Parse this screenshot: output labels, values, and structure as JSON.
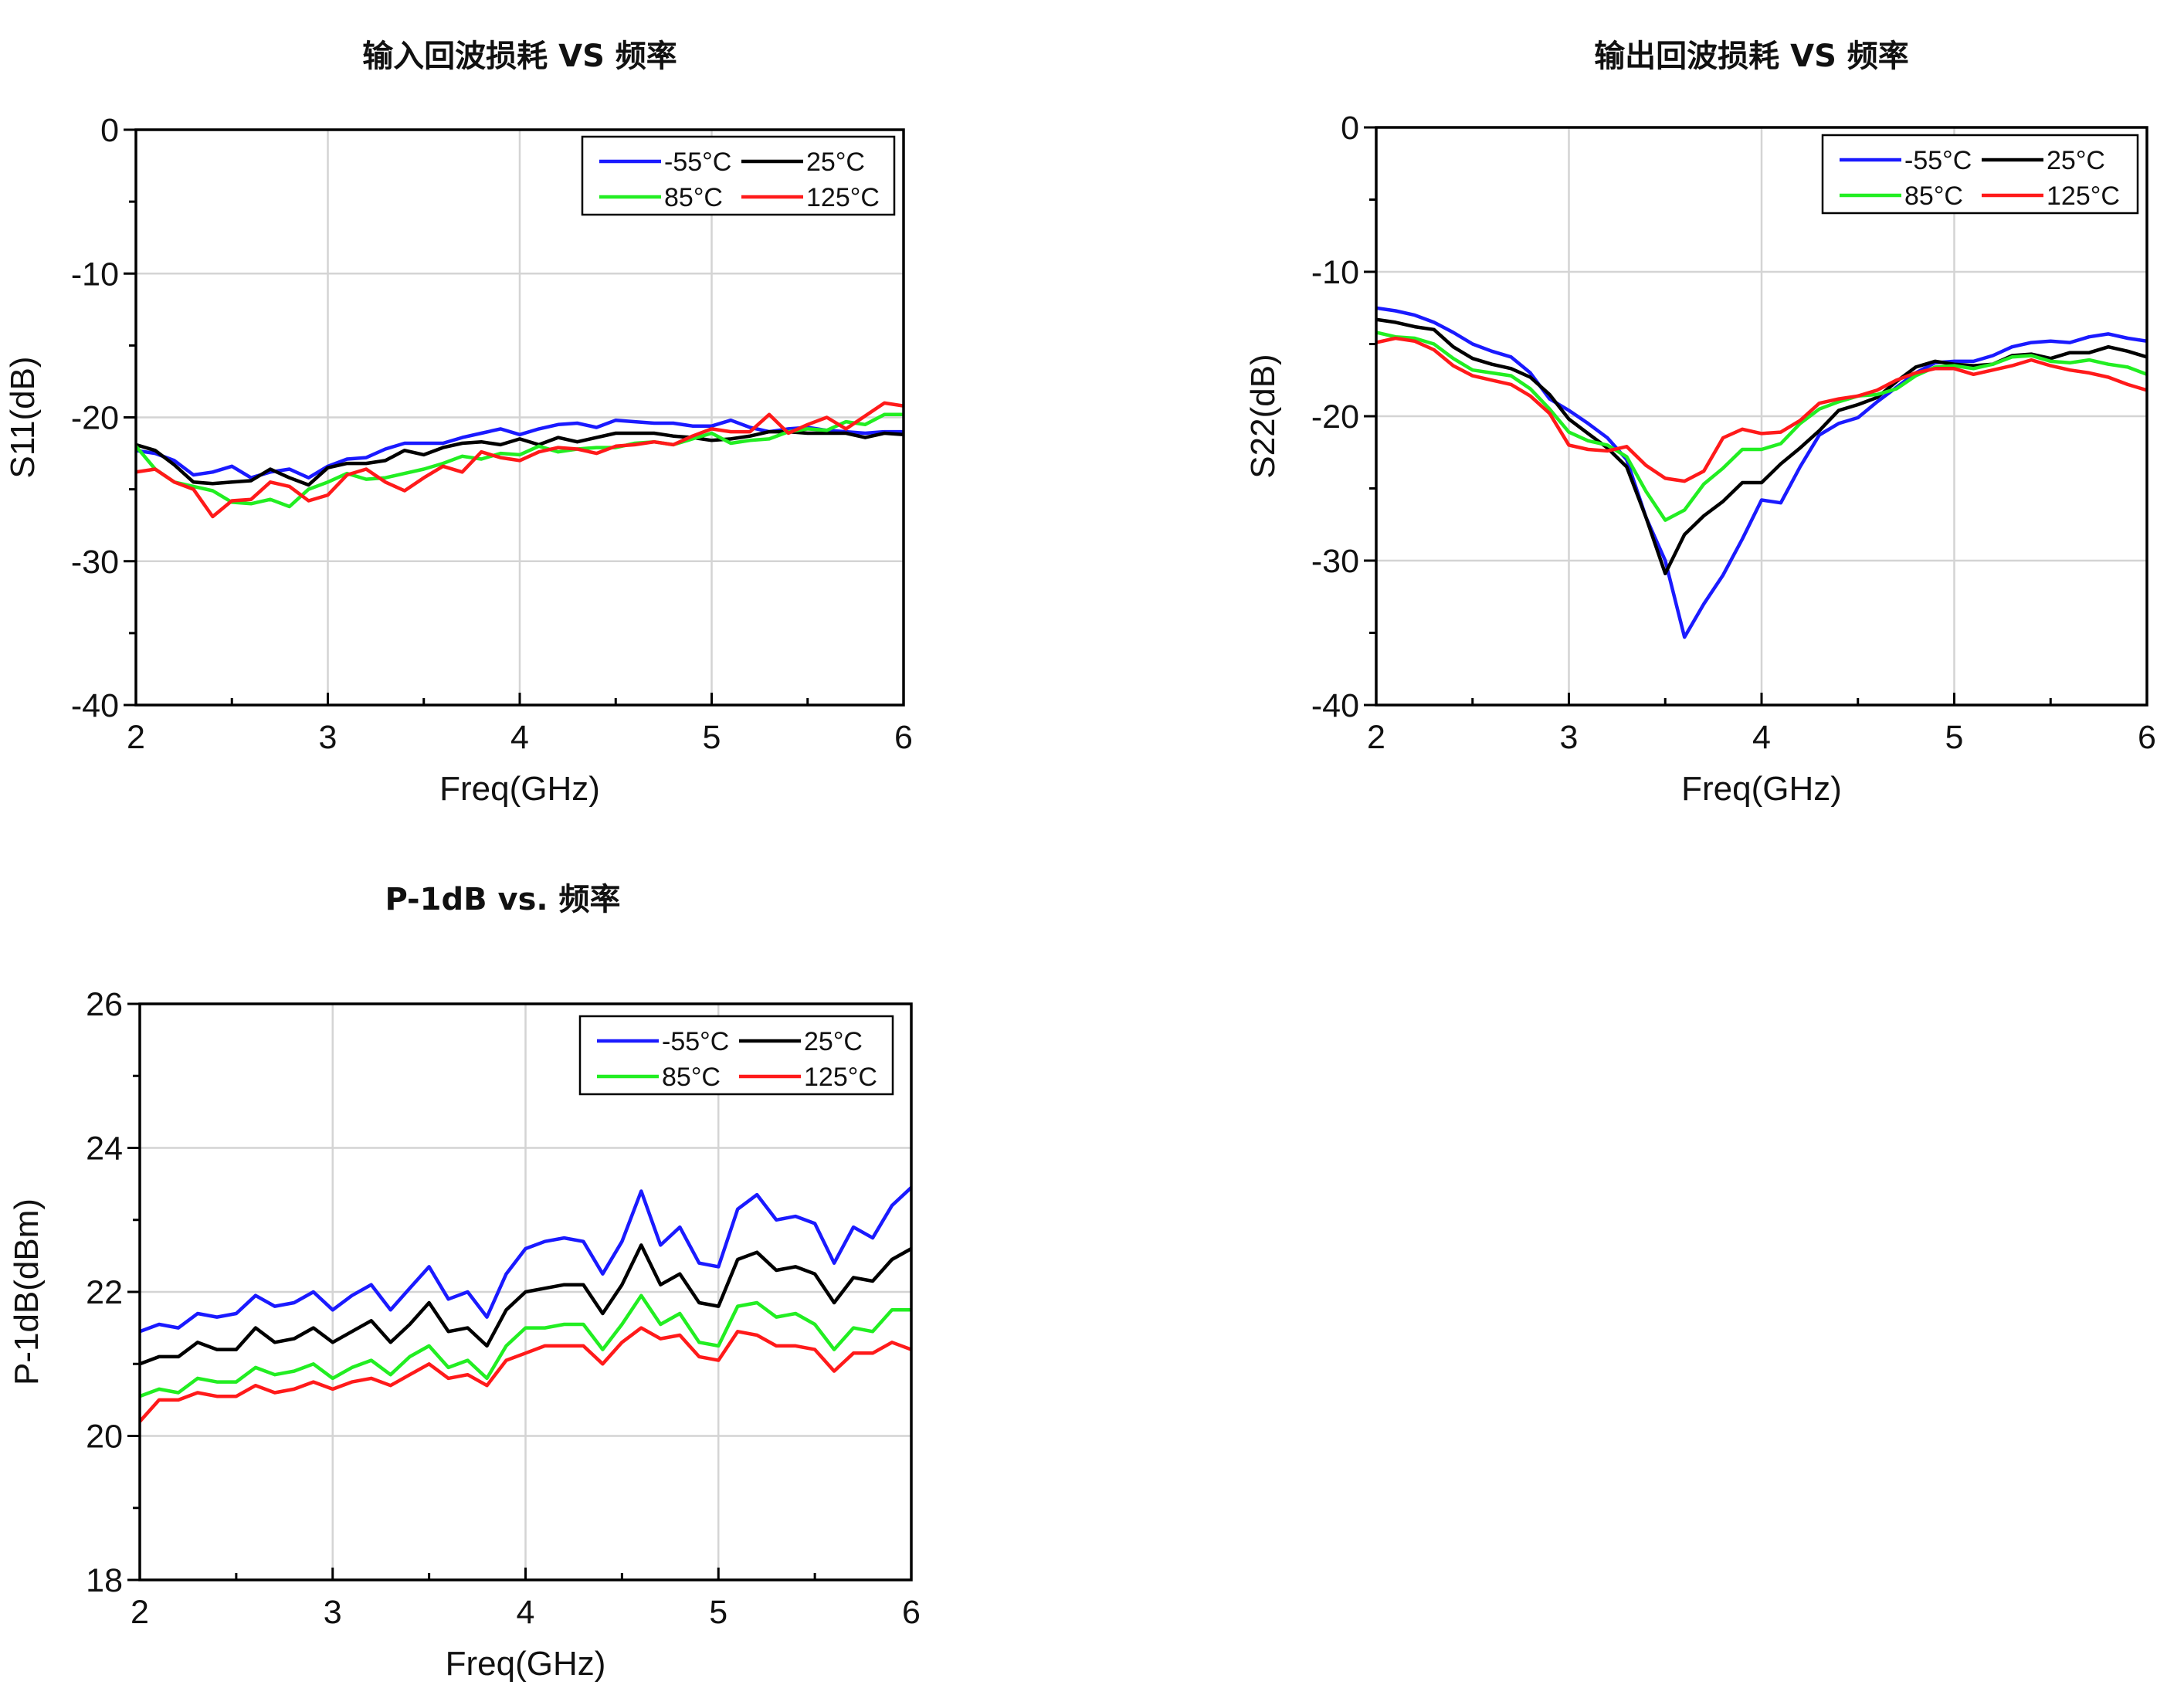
{
  "chart_data": [
    {
      "type": "line",
      "title": "输入回波损耗 VS 频率",
      "xlabel": "Freq(GHz)",
      "ylabel": "S11(dB)",
      "xlim": [
        2,
        6
      ],
      "ylim": [
        -40,
        0
      ],
      "xticks": [
        "2",
        "3",
        "4",
        "5",
        "6"
      ],
      "yticks": [
        "-40",
        "-30",
        "-20",
        "-10",
        "0"
      ],
      "grid": true,
      "legend": "top-right",
      "x": [
        2.0,
        2.1,
        2.2,
        2.3,
        2.4,
        2.5,
        2.6,
        2.7,
        2.8,
        2.9,
        3.0,
        3.1,
        3.2,
        3.3,
        3.4,
        3.5,
        3.6,
        3.7,
        3.8,
        3.9,
        4.0,
        4.1,
        4.2,
        4.3,
        4.4,
        4.5,
        4.6,
        4.7,
        4.8,
        4.9,
        5.0,
        5.1,
        5.2,
        5.3,
        5.4,
        5.5,
        5.6,
        5.7,
        5.8,
        5.9,
        6.0
      ],
      "series": [
        {
          "name": "-55°C",
          "color": "#1a1aff",
          "values": [
            -22.3,
            -22.5,
            -23.0,
            -24.0,
            -23.8,
            -23.4,
            -24.2,
            -23.8,
            -23.6,
            -24.2,
            -23.4,
            -22.9,
            -22.8,
            -22.2,
            -21.8,
            -21.8,
            -21.8,
            -21.4,
            -21.1,
            -20.8,
            -21.2,
            -20.8,
            -20.5,
            -20.4,
            -20.7,
            -20.2,
            -20.3,
            -20.4,
            -20.4,
            -20.6,
            -20.6,
            -20.2,
            -20.7,
            -21.0,
            -20.8,
            -20.7,
            -20.9,
            -21.0,
            -21.1,
            -21.0,
            -21.0
          ]
        },
        {
          "name": "25°C",
          "color": "#000000",
          "values": [
            -21.9,
            -22.3,
            -23.3,
            -24.5,
            -24.6,
            -24.5,
            -24.4,
            -23.6,
            -24.2,
            -24.7,
            -23.5,
            -23.2,
            -23.2,
            -23.0,
            -22.3,
            -22.6,
            -22.1,
            -21.8,
            -21.7,
            -21.9,
            -21.5,
            -21.9,
            -21.4,
            -21.7,
            -21.4,
            -21.1,
            -21.1,
            -21.1,
            -21.3,
            -21.4,
            -21.6,
            -21.5,
            -21.3,
            -21.0,
            -21.0,
            -21.1,
            -21.1,
            -21.1,
            -21.4,
            -21.1,
            -21.2
          ]
        },
        {
          "name": "85°C",
          "color": "#22ee22",
          "values": [
            -22.0,
            -23.6,
            -24.5,
            -24.8,
            -25.1,
            -25.9,
            -26.0,
            -25.7,
            -26.2,
            -25.0,
            -24.5,
            -23.9,
            -24.3,
            -24.2,
            -23.9,
            -23.6,
            -23.2,
            -22.7,
            -22.9,
            -22.5,
            -22.6,
            -22.0,
            -22.4,
            -22.2,
            -22.1,
            -22.1,
            -21.8,
            -21.7,
            -21.9,
            -21.5,
            -21.1,
            -21.8,
            -21.6,
            -21.5,
            -21.0,
            -20.8,
            -20.9,
            -20.3,
            -20.5,
            -19.8,
            -19.8
          ]
        },
        {
          "name": "125°C",
          "color": "#ff1a1a",
          "values": [
            -23.8,
            -23.6,
            -24.5,
            -25.0,
            -26.9,
            -25.8,
            -25.7,
            -24.5,
            -24.8,
            -25.8,
            -25.4,
            -24.0,
            -23.6,
            -24.5,
            -25.1,
            -24.2,
            -23.4,
            -23.8,
            -22.4,
            -22.8,
            -23.0,
            -22.4,
            -22.1,
            -22.2,
            -22.5,
            -22.0,
            -21.9,
            -21.7,
            -21.9,
            -21.3,
            -20.8,
            -21.0,
            -21.0,
            -19.8,
            -21.1,
            -20.5,
            -20.0,
            -20.8,
            -19.9,
            -19.0,
            -19.2
          ]
        }
      ]
    },
    {
      "type": "line",
      "title": "输出回波损耗 VS 频率",
      "xlabel": "Freq(GHz)",
      "ylabel": "S22(dB)",
      "xlim": [
        2,
        6
      ],
      "ylim": [
        -40,
        0
      ],
      "xticks": [
        "2",
        "3",
        "4",
        "5",
        "6"
      ],
      "yticks": [
        "-40",
        "-30",
        "-20",
        "-10",
        "0"
      ],
      "grid": true,
      "legend": "top-right",
      "x": [
        2.0,
        2.1,
        2.2,
        2.3,
        2.4,
        2.5,
        2.6,
        2.7,
        2.8,
        2.9,
        3.0,
        3.1,
        3.2,
        3.3,
        3.4,
        3.5,
        3.6,
        3.7,
        3.8,
        3.9,
        4.0,
        4.1,
        4.2,
        4.3,
        4.4,
        4.5,
        4.6,
        4.7,
        4.8,
        4.9,
        5.0,
        5.1,
        5.2,
        5.3,
        5.4,
        5.5,
        5.6,
        5.7,
        5.8,
        5.9,
        6.0
      ],
      "series": [
        {
          "name": "-55°C",
          "color": "#1a1aff",
          "values": [
            -12.5,
            -12.7,
            -13.0,
            -13.5,
            -14.2,
            -15.0,
            -15.5,
            -15.9,
            -17.0,
            -18.8,
            -19.6,
            -20.5,
            -21.5,
            -23.0,
            -27.0,
            -30.0,
            -35.3,
            -33.0,
            -31.0,
            -28.5,
            -25.8,
            -26.0,
            -23.5,
            -21.3,
            -20.5,
            -20.1,
            -19.0,
            -18.0,
            -17.0,
            -16.3,
            -16.2,
            -16.2,
            -15.8,
            -15.2,
            -14.9,
            -14.8,
            -14.9,
            -14.5,
            -14.3,
            -14.6,
            -14.8
          ]
        },
        {
          "name": "25°C",
          "color": "#000000",
          "values": [
            -13.3,
            -13.5,
            -13.8,
            -14.0,
            -15.2,
            -16.0,
            -16.4,
            -16.7,
            -17.3,
            -18.5,
            -20.2,
            -21.2,
            -22.2,
            -23.5,
            -27.0,
            -30.9,
            -28.2,
            -26.9,
            -25.9,
            -24.6,
            -24.6,
            -23.3,
            -22.2,
            -21.0,
            -19.6,
            -19.2,
            -18.7,
            -17.6,
            -16.6,
            -16.2,
            -16.4,
            -16.5,
            -16.4,
            -15.8,
            -15.7,
            -16.0,
            -15.6,
            -15.6,
            -15.2,
            -15.5,
            -15.9
          ]
        },
        {
          "name": "85°C",
          "color": "#22ee22",
          "values": [
            -14.2,
            -14.5,
            -14.6,
            -15.0,
            -16.0,
            -16.8,
            -17.0,
            -17.2,
            -18.1,
            -19.5,
            -21.1,
            -21.7,
            -22.0,
            -22.8,
            -25.2,
            -27.2,
            -26.5,
            -24.7,
            -23.6,
            -22.3,
            -22.3,
            -21.9,
            -20.5,
            -19.5,
            -19.0,
            -18.6,
            -18.5,
            -18.1,
            -17.2,
            -16.6,
            -16.5,
            -16.7,
            -16.4,
            -15.9,
            -15.8,
            -16.2,
            -16.3,
            -16.1,
            -16.4,
            -16.6,
            -17.1
          ]
        },
        {
          "name": "125°C",
          "color": "#ff1a1a",
          "values": [
            -14.9,
            -14.6,
            -14.8,
            -15.4,
            -16.5,
            -17.2,
            -17.5,
            -17.8,
            -18.6,
            -19.8,
            -22.0,
            -22.3,
            -22.4,
            -22.1,
            -23.4,
            -24.3,
            -24.5,
            -23.8,
            -21.5,
            -20.9,
            -21.2,
            -21.1,
            -20.3,
            -19.1,
            -18.8,
            -18.6,
            -18.2,
            -17.5,
            -17.0,
            -16.7,
            -16.7,
            -17.1,
            -16.8,
            -16.5,
            -16.1,
            -16.5,
            -16.8,
            -17.0,
            -17.3,
            -17.8,
            -18.2
          ]
        }
      ]
    },
    {
      "type": "line",
      "title": "P-1dB vs. 频率",
      "xlabel": "Freq(GHz)",
      "ylabel": "P-1dB(dBm)",
      "xlim": [
        2,
        6
      ],
      "ylim": [
        18,
        26
      ],
      "xticks": [
        "2",
        "3",
        "4",
        "5",
        "6"
      ],
      "yticks": [
        "18",
        "20",
        "22",
        "24",
        "26"
      ],
      "grid": true,
      "legend": "top-right",
      "x": [
        2.0,
        2.1,
        2.2,
        2.3,
        2.4,
        2.5,
        2.6,
        2.7,
        2.8,
        2.9,
        3.0,
        3.1,
        3.2,
        3.3,
        3.4,
        3.5,
        3.6,
        3.7,
        3.8,
        3.9,
        4.0,
        4.1,
        4.2,
        4.3,
        4.4,
        4.5,
        4.6,
        4.7,
        4.8,
        4.9,
        5.0,
        5.1,
        5.2,
        5.3,
        5.4,
        5.5,
        5.6,
        5.7,
        5.8,
        5.9,
        6.0
      ],
      "series": [
        {
          "name": "-55°C",
          "color": "#1a1aff",
          "values": [
            21.45,
            21.55,
            21.5,
            21.7,
            21.65,
            21.7,
            21.95,
            21.8,
            21.85,
            22.0,
            21.75,
            21.95,
            22.1,
            21.75,
            22.05,
            22.35,
            21.9,
            22.0,
            21.65,
            22.25,
            22.6,
            22.7,
            22.75,
            22.7,
            22.25,
            22.7,
            23.4,
            22.65,
            22.9,
            22.4,
            22.35,
            23.15,
            23.35,
            23.0,
            23.05,
            22.95,
            22.4,
            22.9,
            22.75,
            23.2,
            23.45
          ]
        },
        {
          "name": "25°C",
          "color": "#000000",
          "values": [
            21.0,
            21.1,
            21.1,
            21.3,
            21.2,
            21.2,
            21.5,
            21.3,
            21.35,
            21.5,
            21.3,
            21.45,
            21.6,
            21.3,
            21.55,
            21.85,
            21.45,
            21.5,
            21.25,
            21.75,
            22.0,
            22.05,
            22.1,
            22.1,
            21.7,
            22.1,
            22.65,
            22.1,
            22.25,
            21.85,
            21.8,
            22.45,
            22.55,
            22.3,
            22.35,
            22.25,
            21.85,
            22.2,
            22.15,
            22.45,
            22.6
          ]
        },
        {
          "name": "85°C",
          "color": "#22ee22",
          "values": [
            20.55,
            20.65,
            20.6,
            20.8,
            20.75,
            20.75,
            20.95,
            20.85,
            20.9,
            21.0,
            20.8,
            20.95,
            21.05,
            20.85,
            21.1,
            21.25,
            20.95,
            21.05,
            20.8,
            21.25,
            21.5,
            21.5,
            21.55,
            21.55,
            21.2,
            21.55,
            21.95,
            21.55,
            21.7,
            21.3,
            21.25,
            21.8,
            21.85,
            21.65,
            21.7,
            21.55,
            21.2,
            21.5,
            21.45,
            21.75,
            21.75
          ]
        },
        {
          "name": "125°C",
          "color": "#ff1a1a",
          "values": [
            20.2,
            20.5,
            20.5,
            20.6,
            20.55,
            20.55,
            20.7,
            20.6,
            20.65,
            20.75,
            20.65,
            20.75,
            20.8,
            20.7,
            20.85,
            21.0,
            20.8,
            20.85,
            20.7,
            21.05,
            21.15,
            21.25,
            21.25,
            21.25,
            21.0,
            21.3,
            21.5,
            21.35,
            21.4,
            21.1,
            21.05,
            21.45,
            21.4,
            21.25,
            21.25,
            21.2,
            20.9,
            21.15,
            21.15,
            21.3,
            21.2
          ]
        }
      ]
    }
  ]
}
